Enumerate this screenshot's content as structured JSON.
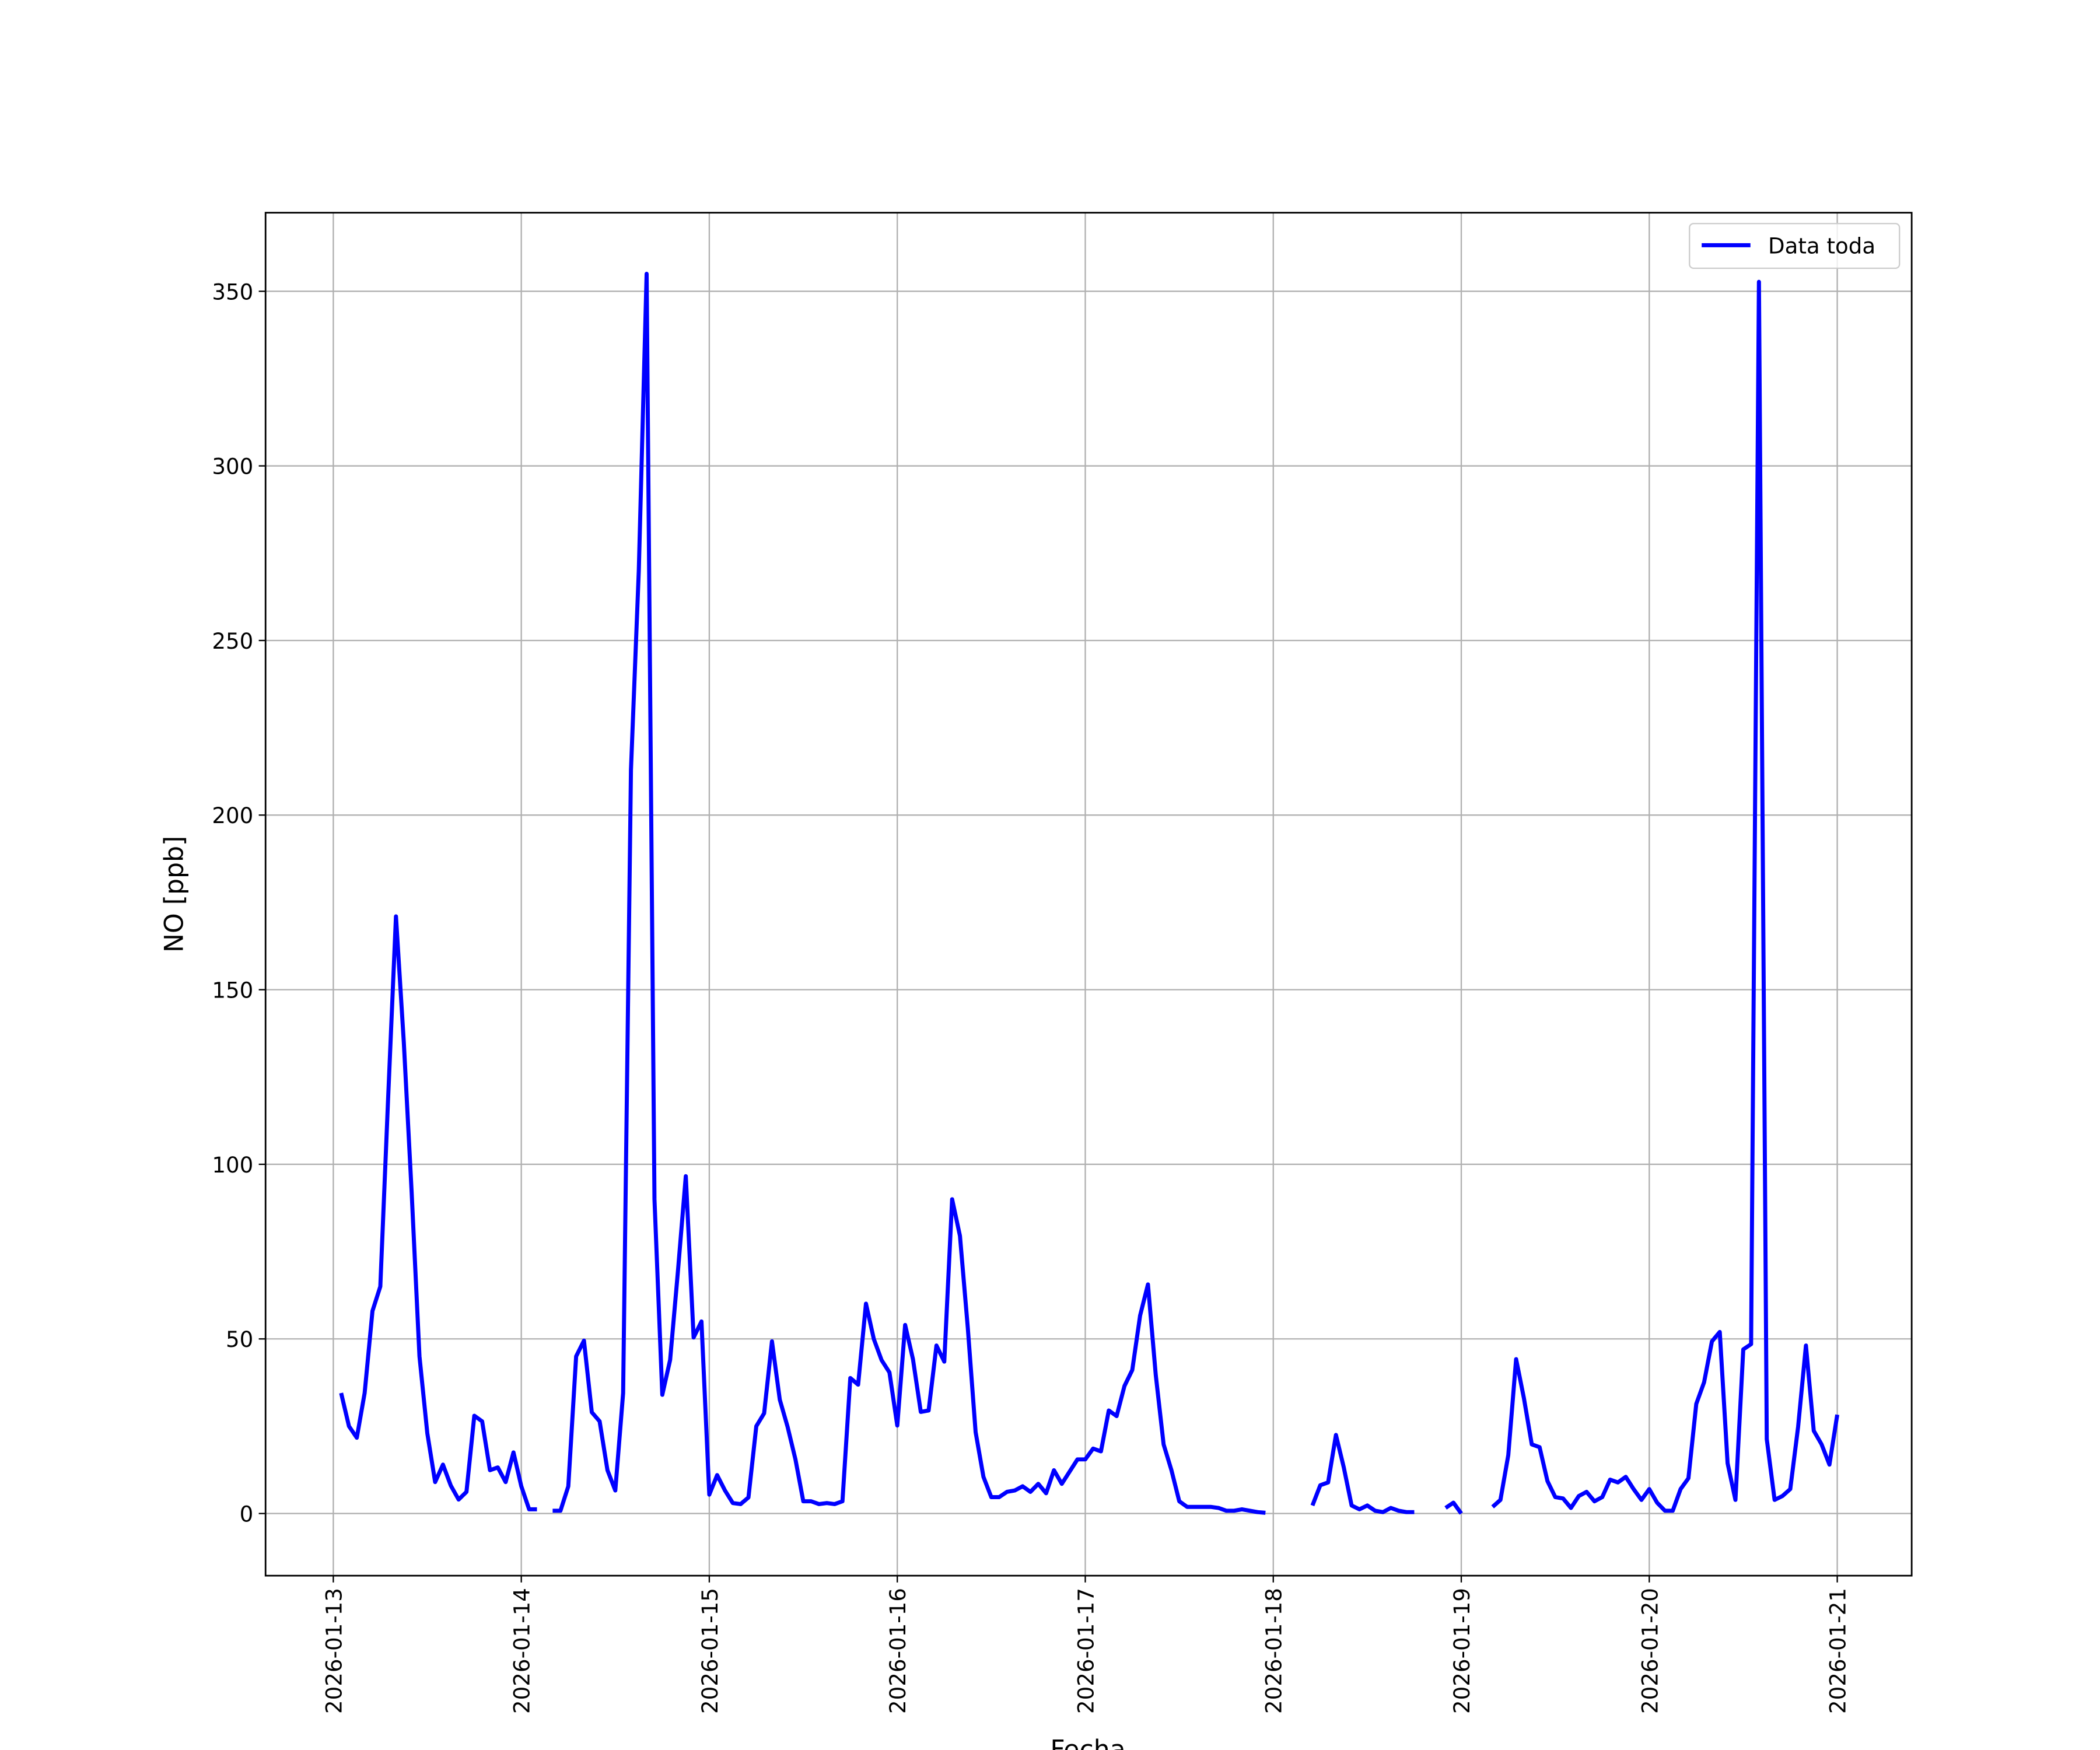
{
  "chart_data": {
    "type": "line",
    "xlabel": "Fecha",
    "ylabel": "NO [ppb]",
    "x": [
      "2026-01-13 01:00",
      "2026-01-13 02:00",
      "2026-01-13 03:00",
      "2026-01-13 04:00",
      "2026-01-13 05:00",
      "2026-01-13 06:00",
      "2026-01-13 07:00",
      "2026-01-13 08:00",
      "2026-01-13 09:00",
      "2026-01-13 10:00",
      "2026-01-13 11:00",
      "2026-01-13 12:00",
      "2026-01-13 13:00",
      "2026-01-13 14:00",
      "2026-01-13 15:00",
      "2026-01-13 16:00",
      "2026-01-13 17:00",
      "2026-01-13 18:00",
      "2026-01-13 19:00",
      "2026-01-13 20:00",
      "2026-01-13 21:00",
      "2026-01-13 22:00",
      "2026-01-13 23:00",
      "2026-01-14 00:00",
      "2026-01-14 01:00",
      "2026-01-14 02:00",
      "2026-01-14 03:00",
      "2026-01-14 04:00",
      "2026-01-14 05:00",
      "2026-01-14 06:00",
      "2026-01-14 07:00",
      "2026-01-14 08:00",
      "2026-01-14 09:00",
      "2026-01-14 10:00",
      "2026-01-14 11:00",
      "2026-01-14 12:00",
      "2026-01-14 13:00",
      "2026-01-14 14:00",
      "2026-01-14 15:00",
      "2026-01-14 16:00",
      "2026-01-14 17:00",
      "2026-01-14 18:00",
      "2026-01-14 19:00",
      "2026-01-14 20:00",
      "2026-01-14 21:00",
      "2026-01-14 22:00",
      "2026-01-14 23:00",
      "2026-01-15 00:00",
      "2026-01-15 01:00",
      "2026-01-15 02:00",
      "2026-01-15 03:00",
      "2026-01-15 04:00",
      "2026-01-15 05:00",
      "2026-01-15 06:00",
      "2026-01-15 07:00",
      "2026-01-15 08:00",
      "2026-01-15 09:00",
      "2026-01-15 10:00",
      "2026-01-15 11:00",
      "2026-01-15 12:00",
      "2026-01-15 13:00",
      "2026-01-15 14:00",
      "2026-01-15 15:00",
      "2026-01-15 16:00",
      "2026-01-15 17:00",
      "2026-01-15 18:00",
      "2026-01-15 19:00",
      "2026-01-15 20:00",
      "2026-01-15 21:00",
      "2026-01-15 22:00",
      "2026-01-15 23:00",
      "2026-01-16 00:00",
      "2026-01-16 01:00",
      "2026-01-16 02:00",
      "2026-01-16 03:00",
      "2026-01-16 04:00",
      "2026-01-16 05:00",
      "2026-01-16 06:00",
      "2026-01-16 07:00",
      "2026-01-16 08:00",
      "2026-01-16 09:00",
      "2026-01-16 10:00",
      "2026-01-16 11:00",
      "2026-01-16 12:00",
      "2026-01-16 13:00",
      "2026-01-16 14:00",
      "2026-01-16 15:00",
      "2026-01-16 16:00",
      "2026-01-16 17:00",
      "2026-01-16 18:00",
      "2026-01-16 19:00",
      "2026-01-16 20:00",
      "2026-01-16 21:00",
      "2026-01-16 22:00",
      "2026-01-16 23:00",
      "2026-01-17 00:00",
      "2026-01-17 01:00",
      "2026-01-17 02:00",
      "2026-01-17 03:00",
      "2026-01-17 04:00",
      "2026-01-17 05:00",
      "2026-01-17 06:00",
      "2026-01-17 07:00",
      "2026-01-17 08:00",
      "2026-01-17 09:00",
      "2026-01-17 10:00",
      "2026-01-17 11:00",
      "2026-01-17 12:00",
      "2026-01-17 13:00",
      "2026-01-17 14:00",
      "2026-01-17 15:00",
      "2026-01-17 16:00",
      "2026-01-17 17:00",
      "2026-01-17 18:00",
      "2026-01-17 19:00",
      "2026-01-17 20:00",
      "2026-01-17 21:00",
      "2026-01-17 22:00",
      "2026-01-17 23:00",
      "2026-01-18 00:00",
      "2026-01-18 01:00",
      "2026-01-18 02:00",
      "2026-01-18 03:00",
      "2026-01-18 04:00",
      "2026-01-18 05:00",
      "2026-01-18 06:00",
      "2026-01-18 07:00",
      "2026-01-18 08:00",
      "2026-01-18 09:00",
      "2026-01-18 10:00",
      "2026-01-18 11:00",
      "2026-01-18 12:00",
      "2026-01-18 13:00",
      "2026-01-18 14:00",
      "2026-01-18 15:00",
      "2026-01-18 16:00",
      "2026-01-18 17:00",
      "2026-01-18 18:00",
      "2026-01-18 19:00",
      "2026-01-18 20:00",
      "2026-01-18 21:00",
      "2026-01-18 22:00",
      "2026-01-18 23:00",
      "2026-01-19 00:00",
      "2026-01-19 01:00",
      "2026-01-19 02:00",
      "2026-01-19 03:00",
      "2026-01-19 04:00",
      "2026-01-19 05:00",
      "2026-01-19 06:00",
      "2026-01-19 07:00",
      "2026-01-19 08:00",
      "2026-01-19 09:00",
      "2026-01-19 10:00",
      "2026-01-19 11:00",
      "2026-01-19 12:00",
      "2026-01-19 13:00",
      "2026-01-19 14:00",
      "2026-01-19 15:00",
      "2026-01-19 16:00",
      "2026-01-19 17:00",
      "2026-01-19 18:00",
      "2026-01-19 19:00",
      "2026-01-19 20:00",
      "2026-01-19 21:00",
      "2026-01-19 22:00",
      "2026-01-19 23:00",
      "2026-01-20 00:00",
      "2026-01-20 01:00",
      "2026-01-20 02:00",
      "2026-01-20 03:00",
      "2026-01-20 04:00",
      "2026-01-20 05:00",
      "2026-01-20 06:00",
      "2026-01-20 07:00",
      "2026-01-20 08:00",
      "2026-01-20 09:00",
      "2026-01-20 10:00",
      "2026-01-20 11:00",
      "2026-01-20 12:00",
      "2026-01-20 13:00",
      "2026-01-20 14:00",
      "2026-01-20 15:00",
      "2026-01-20 16:00",
      "2026-01-20 17:00",
      "2026-01-20 18:00",
      "2026-01-20 19:00",
      "2026-01-20 20:00",
      "2026-01-20 21:00",
      "2026-01-20 22:00",
      "2026-01-20 23:00",
      "2026-01-21 00:00"
    ],
    "series": [
      {
        "name": "Data toda",
        "color": "#0000ff",
        "values": [
          34.5,
          25,
          21.7,
          34.5,
          58,
          65,
          119,
          171,
          135,
          92,
          45,
          23,
          9,
          14,
          8,
          4,
          6.2,
          28,
          26.4,
          12.4,
          13.2,
          9,
          17.5,
          7.8,
          1.2,
          1.2,
          null,
          0.8,
          0.8,
          7.8,
          45,
          49.5,
          29,
          26.4,
          12.4,
          6.6,
          34.5,
          213,
          270,
          355,
          90,
          34,
          44,
          69.5,
          96.6,
          50.4,
          55,
          5.4,
          11,
          6.6,
          3,
          2.7,
          4.6,
          25,
          28.7,
          49.3,
          32.6,
          24.8,
          15.5,
          3.5,
          3.5,
          2.7,
          3,
          2.7,
          3.5,
          38.8,
          36.9,
          60.1,
          50,
          43.9,
          40.4,
          25.2,
          54,
          44.2,
          29.1,
          29.5,
          48.1,
          43.5,
          90,
          79.5,
          53.2,
          23.3,
          10.5,
          4.7,
          4.7,
          6.2,
          6.6,
          7.8,
          6.2,
          8.5,
          5.8,
          12.4,
          8.5,
          12,
          15.5,
          15.5,
          18.6,
          17.8,
          29.5,
          27.9,
          36.5,
          41.1,
          56.7,
          65.6,
          39.6,
          19.8,
          12.4,
          3.5,
          1.9,
          1.9,
          1.9,
          1.9,
          1.6,
          0.8,
          0.8,
          1.2,
          0.8,
          0.4,
          0.2,
          null,
          null,
          null,
          null,
          null,
          2.3,
          8.1,
          8.9,
          22.5,
          13.2,
          2.3,
          1.2,
          2.3,
          0.8,
          0.4,
          1.6,
          0.8,
          0.4,
          0.4,
          null,
          null,
          null,
          1.6,
          3.1,
          0,
          null,
          null,
          null,
          1.9,
          3.9,
          16.7,
          44.2,
          33,
          19.8,
          19,
          9.3,
          4.7,
          4.3,
          1.6,
          5,
          6.2,
          3.5,
          4.7,
          9.7,
          8.9,
          10.5,
          7,
          3.9,
          7,
          3.1,
          0.8,
          0.8,
          7,
          10.1,
          31.4,
          37.6,
          49.3,
          52,
          14.4,
          3.9,
          47,
          48.5,
          352.7,
          21.3,
          3.9,
          5,
          7,
          24.8,
          48.1,
          23.7,
          19.8,
          14,
          28.3
        ]
      }
    ],
    "xlim": [
      "2026-01-12 15:21",
      "2026-01-21 09:30"
    ],
    "xticks": [
      "2026-01-13",
      "2026-01-14",
      "2026-01-15",
      "2026-01-16",
      "2026-01-17",
      "2026-01-18",
      "2026-01-19",
      "2026-01-20",
      "2026-01-21"
    ],
    "ylim": [
      -17.8,
      372.5
    ],
    "yticks": [
      0,
      50,
      100,
      150,
      200,
      250,
      300,
      350
    ],
    "grid": true,
    "legend": "upper right"
  }
}
